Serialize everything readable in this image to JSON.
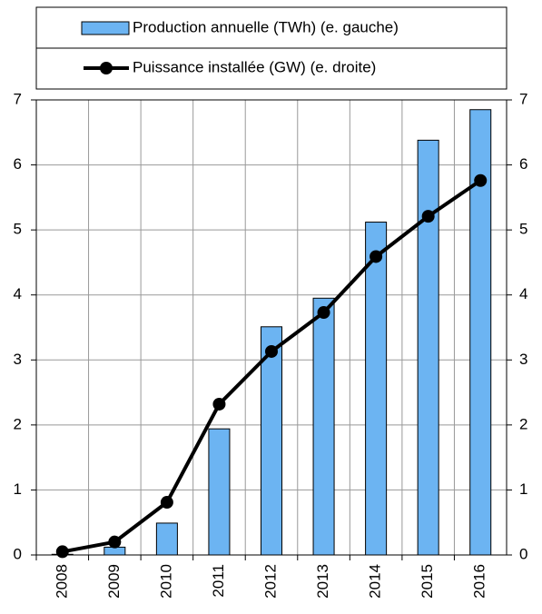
{
  "chart_data": {
    "type": "bar-line",
    "categories": [
      "2008",
      "2009",
      "2010",
      "2011",
      "2012",
      "2013",
      "2014",
      "2015",
      "2016"
    ],
    "series": [
      {
        "name": "Production annuelle (TWh) (e. gauche)",
        "type": "bar",
        "color": "#6cb4f2",
        "values": [
          0.01,
          0.12,
          0.49,
          1.94,
          3.51,
          3.95,
          5.12,
          6.38,
          6.85
        ]
      },
      {
        "name": "Puissance installée (GW) (e. droite)",
        "type": "line",
        "axis": "y2",
        "color": "#000000",
        "values": [
          0.05,
          0.2,
          0.81,
          2.32,
          3.13,
          3.73,
          4.59,
          5.21,
          5.76
        ]
      }
    ],
    "ylim": [
      0,
      7
    ],
    "yticks": [
      0,
      1,
      2,
      3,
      4,
      5,
      6,
      7
    ],
    "y2lim": [
      0,
      7
    ],
    "y2ticks": [
      0,
      1,
      2,
      3,
      4,
      5,
      6,
      7
    ],
    "grid": true,
    "legend": "top"
  }
}
